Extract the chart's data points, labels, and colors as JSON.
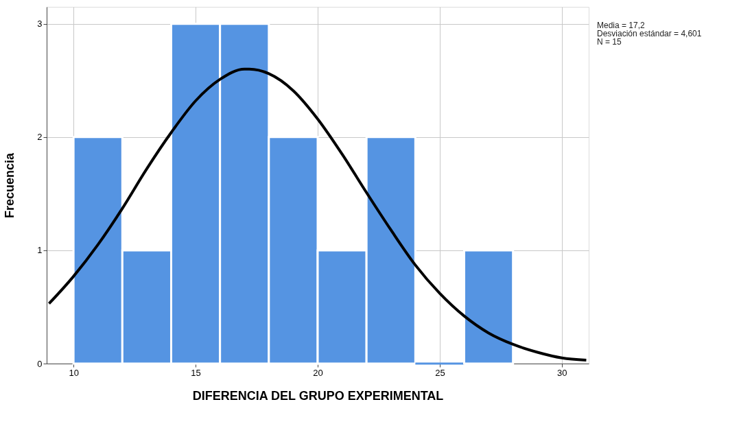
{
  "chart_data": {
    "type": "histogram",
    "xlabel": "DIFERENCIA DEL GRUPO EXPERIMENTAL",
    "ylabel": "Frecuencia",
    "xlim": [
      8.9,
      31.1
    ],
    "xticks": [
      10,
      15,
      20,
      25,
      30
    ],
    "ylim": [
      0,
      3.15
    ],
    "yticks": [
      0,
      1,
      2,
      3
    ],
    "grid": true,
    "annotations": [
      "Media = 17,2",
      "Desviación estándar = 4,601",
      "N = 15"
    ],
    "series": [
      {
        "type": "histogram",
        "color": "#5594e2",
        "bins": [
          10,
          12,
          14,
          16,
          18,
          20,
          22,
          24,
          26,
          28
        ],
        "values": [
          2,
          1,
          3,
          3,
          2,
          1,
          2,
          0,
          1
        ]
      },
      {
        "type": "line",
        "color": "#000000",
        "x": [
          9,
          10,
          11,
          12,
          13,
          14,
          15,
          16,
          17,
          17.2,
          18,
          19,
          20,
          21,
          22,
          23,
          24,
          25,
          26,
          27,
          28,
          29,
          30,
          31
        ],
        "values": [
          0.53,
          0.77,
          1.05,
          1.37,
          1.72,
          2.04,
          2.32,
          2.51,
          2.6,
          2.6,
          2.56,
          2.41,
          2.16,
          1.85,
          1.51,
          1.18,
          0.87,
          0.62,
          0.42,
          0.27,
          0.17,
          0.1,
          0.05,
          0.03
        ]
      }
    ]
  }
}
